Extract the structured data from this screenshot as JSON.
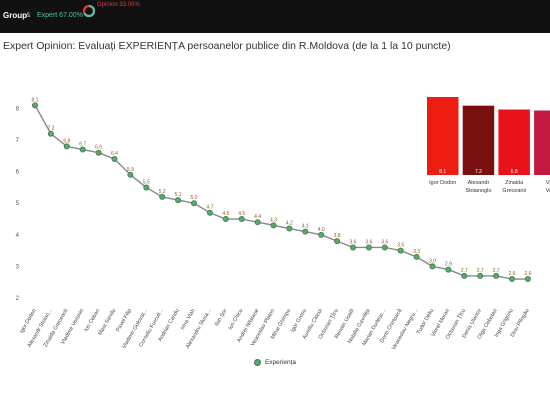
{
  "topbar": {
    "group_label": "Group",
    "amp_icon": "&",
    "expert_pct": "Expert 67.00%",
    "opinion_pct": "Opinion 33.00%",
    "gauge_icon": "donut-gauge-icon",
    "colors": {
      "expert": "#4fc3a1",
      "opinion": "#e53935"
    }
  },
  "page_title": "Expert Opinion: Evaluați EXPERIENȚA persoanelor publice din R.Moldova (de la 1 la 10 puncte)",
  "chart_data": [
    {
      "type": "line",
      "x": [
        "Igor Dodon",
        "Alexandr Stoian...",
        "Zinaida Greceanii",
        "Vladimir Voronin",
        "Ion Ceban",
        "Maia Sandu",
        "Pavel Filip",
        "Vladimir Golovat...",
        "Corneliu Furculi...",
        "Andrian Candu",
        "Irina Vlah",
        "Alexandru Slusa...",
        "Ilan Şor",
        "Ion Chicu",
        "Andrei Năstase",
        "Veaceslav Platon",
        "Mihai Ghimpu",
        "Igor Grosu",
        "Aureliu Ciocoi",
        "Octavian Ţîcu",
        "Renato Usatîi",
        "Natalia Gavriliţa",
        "Marian Durlesc...",
        "Dorin Chirtoacă",
        "Veaceslav Negru...",
        "Tudor Deliu",
        "Viorel Morari",
        "Octavian Ţîcu",
        "Denis Ulanov",
        "Olga Cebotari",
        "Inga Grigoriu",
        "Dinu Plîngău"
      ],
      "series": [
        {
          "name": "Experiența",
          "values": [
            8.1,
            7.2,
            6.8,
            6.7,
            6.6,
            6.4,
            5.9,
            5.5,
            5.2,
            5.1,
            5.0,
            4.7,
            4.5,
            4.5,
            4.4,
            4.3,
            4.2,
            4.1,
            4.0,
            3.8,
            3.6,
            3.6,
            3.6,
            3.5,
            3.3,
            3.0,
            2.9,
            2.7,
            2.7,
            2.7,
            2.6,
            2.6
          ],
          "color": "#5aa86a"
        }
      ],
      "ylim": [
        2,
        8.3
      ],
      "y_ticks": [
        2,
        3,
        4,
        5,
        6,
        7,
        8
      ],
      "grid": false,
      "legend": "bottom-center"
    },
    {
      "type": "bar",
      "categories": [
        "Igor Dodon",
        "Alexandr Stoianoglo",
        "Zinaida Greceanii",
        "Vladimir Voronin"
      ],
      "category_labels": [
        [
          "Igor Dodon"
        ],
        [
          "Alexandr",
          "Stoianoglo"
        ],
        [
          "Zinaida",
          "Greceanii"
        ],
        [
          "Vla",
          "Vor"
        ]
      ],
      "values": [
        8.1,
        7.2,
        6.8,
        6.7
      ],
      "value_labels": [
        "8.1",
        "7.2",
        "6.8",
        ""
      ],
      "colors": [
        "#ee1c10",
        "#7a0f0f",
        "#e8121a",
        "#c2193e"
      ]
    }
  ]
}
